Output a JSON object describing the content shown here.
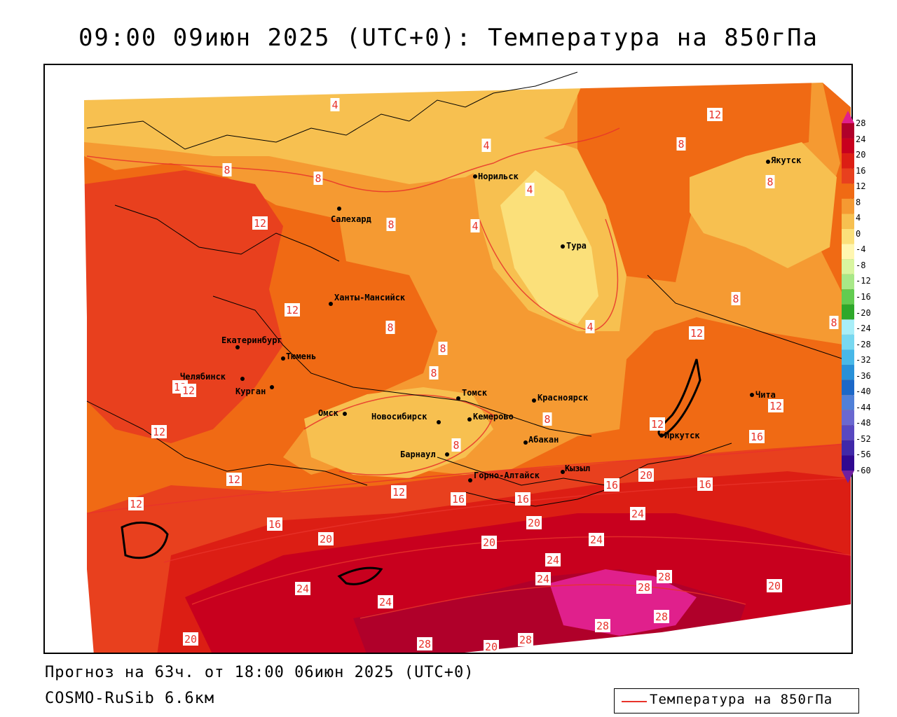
{
  "title": "09:00 09июн 2025 (UTC+0): Температура на 850гПа",
  "footer": {
    "forecast": "Прогноз на 63ч. от 18:00 06июн 2025 (UTC+0)",
    "model": "COSMO-RuSib 6.6км"
  },
  "legend": {
    "label": "Температура на 850гПа",
    "line_color": "#e8332a"
  },
  "colorbar": {
    "ticks": [
      "28",
      "24",
      "20",
      "16",
      "12",
      "8",
      "4",
      "0",
      "-4",
      "-8",
      "-12",
      "-16",
      "-20",
      "-24",
      "-28",
      "-32",
      "-36",
      "-40",
      "-44",
      "-48",
      "-52",
      "-56",
      "-60"
    ],
    "colors": [
      "#b0002a",
      "#c8001e",
      "#dc1e14",
      "#e8401e",
      "#f06a14",
      "#f59a32",
      "#f7c050",
      "#fbe07a",
      "#fff6b0",
      "#d9f5a0",
      "#a8e888",
      "#62cc50",
      "#2ea82a",
      "#a8eef8",
      "#78d8f0",
      "#48b8e8",
      "#2890d8",
      "#1c68c8",
      "#5080d8",
      "#6a68d0",
      "#5848c0",
      "#4028a8",
      "#300890"
    ],
    "top_color": "#e0208c",
    "bottom_color": "#7020a0"
  },
  "cities": [
    {
      "name": "Норильск"
    },
    {
      "name": "Якутск"
    },
    {
      "name": "Салехард"
    },
    {
      "name": "Тура"
    },
    {
      "name": "Ханты-Мансийск"
    },
    {
      "name": "Екатеринбург"
    },
    {
      "name": "Тюмень"
    },
    {
      "name": "Челябинск"
    },
    {
      "name": "Курган"
    },
    {
      "name": "Омск"
    },
    {
      "name": "Новосибирск"
    },
    {
      "name": "Томск"
    },
    {
      "name": "Кемерово"
    },
    {
      "name": "Красноярск"
    },
    {
      "name": "Барнаул"
    },
    {
      "name": "Абакан"
    },
    {
      "name": "Горно-Алтайск"
    },
    {
      "name": "Кызыл"
    },
    {
      "name": "Иркутск"
    },
    {
      "name": "Чита"
    }
  ],
  "isoline_labels": [
    "4",
    "4",
    "4",
    "4",
    "4",
    "8",
    "8",
    "8",
    "8",
    "8",
    "8",
    "8",
    "8",
    "8",
    "8",
    "8",
    "8",
    "12",
    "12",
    "12",
    "12",
    "12",
    "12",
    "12",
    "12",
    "12",
    "12",
    "12",
    "12",
    "16",
    "16",
    "16",
    "16",
    "16",
    "16",
    "20",
    "20",
    "20",
    "20",
    "20",
    "20",
    "20",
    "24",
    "24",
    "24",
    "24",
    "24",
    "24",
    "28",
    "28",
    "28",
    "28",
    "28",
    "28"
  ]
}
